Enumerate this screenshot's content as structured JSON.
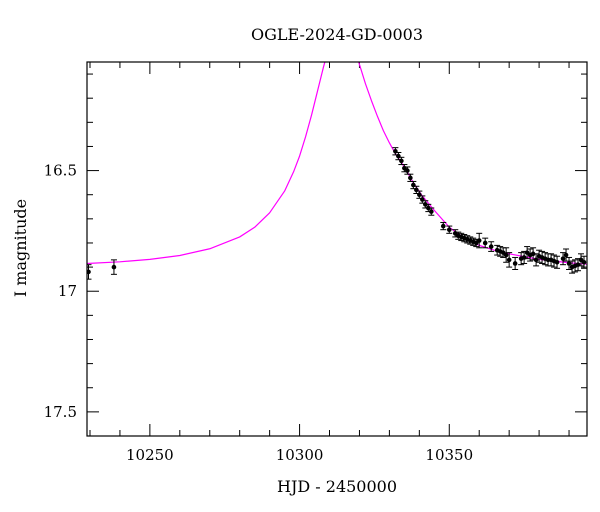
{
  "chart_data": {
    "type": "scatter",
    "title": "OGLE-2024-GD-0003",
    "xlabel": "HJD - 2450000",
    "ylabel": "I magnitude",
    "xlim": [
      10229,
      10396
    ],
    "ylim": [
      17.6,
      16.05
    ],
    "y_inverted": true,
    "x_ticks": [
      10250,
      10300,
      10350
    ],
    "y_ticks": [
      16.5,
      17,
      17.5
    ],
    "x_minor_step": 10,
    "y_minor_step": 0.1,
    "grid": false,
    "colors": {
      "data": "#000000",
      "model": "#ff00ff",
      "axes": "#000000"
    },
    "model": {
      "name": "",
      "x": [
        10229,
        10240,
        10250,
        10260,
        10270,
        10280,
        10285,
        10290,
        10295,
        10298,
        10300,
        10302,
        10304,
        10306,
        10308,
        10310,
        10312,
        10314,
        10316,
        10318,
        10320,
        10322,
        10324,
        10326,
        10328,
        10330,
        10332,
        10335,
        10338,
        10341,
        10345,
        10350,
        10355,
        10360,
        10365,
        10370,
        10380,
        10390,
        10396
      ],
      "y": [
        16.885,
        16.878,
        16.868,
        16.852,
        16.824,
        16.775,
        16.735,
        16.675,
        16.585,
        16.505,
        16.44,
        16.36,
        16.27,
        16.17,
        16.07,
        15.98,
        15.93,
        15.9,
        15.92,
        15.99,
        16.06,
        16.14,
        16.21,
        16.275,
        16.335,
        16.385,
        16.43,
        16.485,
        16.55,
        16.605,
        16.665,
        16.735,
        16.78,
        16.81,
        16.83,
        16.845,
        16.868,
        16.882,
        16.888
      ]
    },
    "series": [
      {
        "x": [
          10229.5,
          10238,
          10332,
          10333,
          10334,
          10335,
          10336,
          10337,
          10338,
          10339,
          10340,
          10341,
          10342,
          10343,
          10344,
          10348,
          10350,
          10352,
          10353,
          10354,
          10355,
          10356,
          10357,
          10358,
          10359,
          10360,
          10362,
          10364,
          10366,
          10367,
          10368,
          10369,
          10370,
          10372,
          10374,
          10375,
          10376,
          10377,
          10378,
          10379,
          10380,
          10381,
          10382,
          10383,
          10384,
          10385,
          10386,
          10388,
          10389,
          10390,
          10391,
          10392,
          10393,
          10394,
          10395
        ],
        "y": [
          16.92,
          16.9,
          16.42,
          16.44,
          16.46,
          16.49,
          16.5,
          16.53,
          16.56,
          16.58,
          16.6,
          16.62,
          16.64,
          16.655,
          16.67,
          16.73,
          16.745,
          16.76,
          16.77,
          16.775,
          16.78,
          16.785,
          16.79,
          16.795,
          16.8,
          16.79,
          16.8,
          16.815,
          16.83,
          16.835,
          16.84,
          16.85,
          16.87,
          16.885,
          16.865,
          16.86,
          16.84,
          16.85,
          16.845,
          16.87,
          16.855,
          16.86,
          16.865,
          16.87,
          16.87,
          16.875,
          16.88,
          16.865,
          16.85,
          16.885,
          16.9,
          16.895,
          16.89,
          16.87,
          16.88
        ],
        "yerr": [
          0.03,
          0.03,
          0.015,
          0.015,
          0.015,
          0.015,
          0.015,
          0.015,
          0.015,
          0.015,
          0.015,
          0.015,
          0.015,
          0.015,
          0.015,
          0.015,
          0.015,
          0.015,
          0.015,
          0.015,
          0.015,
          0.015,
          0.015,
          0.015,
          0.015,
          0.03,
          0.02,
          0.02,
          0.02,
          0.02,
          0.02,
          0.03,
          0.03,
          0.025,
          0.025,
          0.025,
          0.025,
          0.025,
          0.025,
          0.025,
          0.025,
          0.025,
          0.025,
          0.025,
          0.025,
          0.025,
          0.025,
          0.025,
          0.025,
          0.025,
          0.025,
          0.025,
          0.025,
          0.025,
          0.025
        ]
      }
    ]
  }
}
